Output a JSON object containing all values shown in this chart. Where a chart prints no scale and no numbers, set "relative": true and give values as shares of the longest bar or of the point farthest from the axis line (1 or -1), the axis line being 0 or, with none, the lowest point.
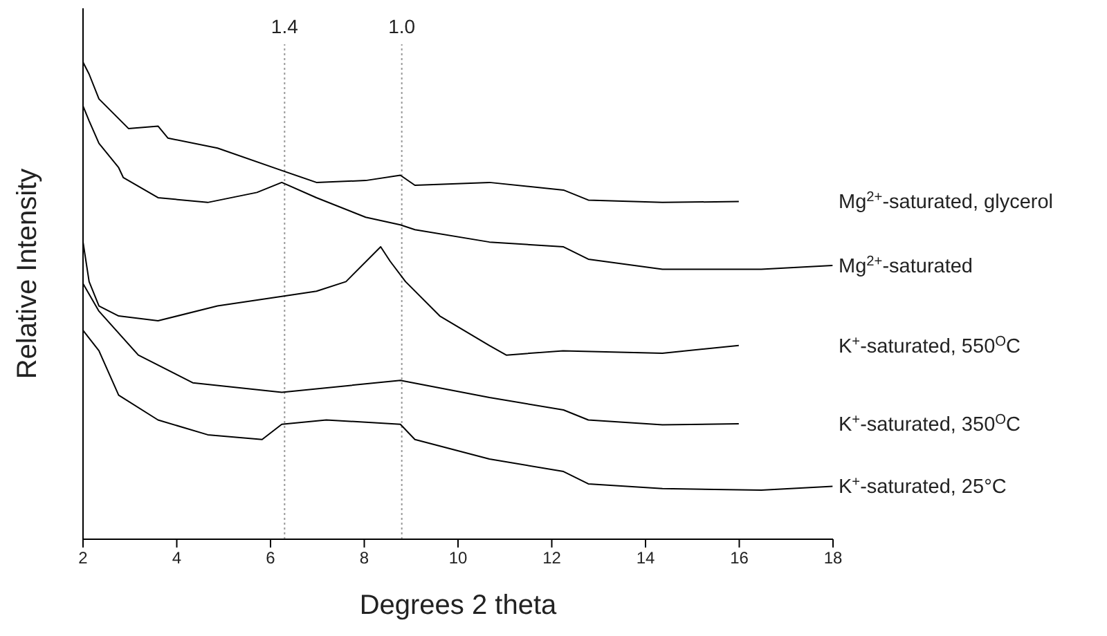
{
  "chart_data": {
    "type": "line",
    "relative": true,
    "xlabel": "Degrees 2 theta",
    "ylabel": "Relative Intensity",
    "xlim": [
      2,
      18
    ],
    "xticks": [
      2,
      4,
      6,
      8,
      10,
      12,
      14,
      16,
      18
    ],
    "line_style": "solid",
    "ref_lines": [
      {
        "axis": "x",
        "value": 6.3,
        "color": "#999999",
        "line_style": "dotted"
      },
      {
        "axis": "x",
        "value": 8.8,
        "color": "#999999",
        "line_style": "dotted"
      }
    ],
    "annotations": [
      "1.4",
      "1.0"
    ],
    "series": [
      {
        "name": "Mg$^{2+}$-saturated, glycerol",
        "color": "#000000",
        "x": [
          2,
          2.13,
          2.34,
          2.97,
          3.6,
          3.81,
          4.87,
          6.24,
          6.98,
          8.03,
          8.77,
          9.08,
          10.67,
          12.25,
          12.78,
          14.36,
          15.99
        ],
        "values": [
          1.0,
          0.975,
          0.923,
          0.861,
          0.866,
          0.841,
          0.82,
          0.773,
          0.748,
          0.752,
          0.763,
          0.742,
          0.748,
          0.732,
          0.711,
          0.706,
          0.708
        ]
      },
      {
        "name": "Mg$^{2+}$-saturated",
        "color": "#000000",
        "x": [
          2,
          2.13,
          2.34,
          2.76,
          2.86,
          3.6,
          4.66,
          5.71,
          6.24,
          6.98,
          8.03,
          8.77,
          9.08,
          10.67,
          12.25,
          12.78,
          14.36,
          16.47,
          17.99
        ],
        "values": [
          0.908,
          0.877,
          0.83,
          0.779,
          0.758,
          0.716,
          0.706,
          0.727,
          0.748,
          0.716,
          0.675,
          0.659,
          0.649,
          0.623,
          0.613,
          0.587,
          0.566,
          0.566,
          0.574
        ]
      },
      {
        "name": "K$^{+}$-saturated, 550$^{O}$C",
        "color": "#000000",
        "x": [
          2,
          2.13,
          2.34,
          2.76,
          3.6,
          4.87,
          6.24,
          6.98,
          7.61,
          8.35,
          8.55,
          8.88,
          9.61,
          10.67,
          11.03,
          12.24,
          14.36,
          15.99
        ],
        "values": [
          0.623,
          0.54,
          0.489,
          0.468,
          0.458,
          0.489,
          0.509,
          0.52,
          0.54,
          0.613,
          0.583,
          0.54,
          0.468,
          0.406,
          0.386,
          0.395,
          0.39,
          0.406
        ]
      },
      {
        "name": "K$^{+}$-saturated, 350$^{O}$C",
        "color": "#000000",
        "x": [
          2,
          2.34,
          3.18,
          4.34,
          6.24,
          8.77,
          10.67,
          12.25,
          12.78,
          14.36,
          15.99
        ],
        "values": [
          0.536,
          0.478,
          0.386,
          0.328,
          0.308,
          0.333,
          0.297,
          0.271,
          0.25,
          0.24,
          0.242
        ]
      },
      {
        "name": "K$^{+}$-saturated, 25°C",
        "color": "#000000",
        "x": [
          2,
          2.34,
          2.76,
          3.6,
          4.66,
          5.82,
          6.24,
          7.19,
          8.77,
          9.08,
          10.67,
          12.25,
          12.78,
          14.36,
          16.47,
          17.99
        ],
        "values": [
          0.438,
          0.395,
          0.302,
          0.25,
          0.219,
          0.209,
          0.241,
          0.25,
          0.241,
          0.209,
          0.168,
          0.142,
          0.116,
          0.106,
          0.103,
          0.111
        ]
      }
    ]
  }
}
